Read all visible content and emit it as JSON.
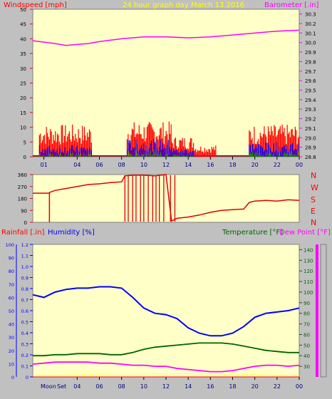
{
  "header": {
    "windspeed_label": "Windspeed [mph]",
    "title": "24 hour graph day   March 13 2016",
    "barometer_label": "Barometer [.in]"
  },
  "colors": {
    "plot_bg": "#ffffc8",
    "gust": "#ff0000",
    "wind_avg": "#0000ff",
    "wind_low": "#00a000",
    "barometer": "#ff00ff",
    "direction": "#e00000",
    "humidity": "#0000ff",
    "temperature": "#006400",
    "dewpoint": "#ff00ff",
    "rainfall": "#ff0000",
    "moon": "#ffff00"
  },
  "time_ticks": [
    "01",
    "04",
    "06",
    "08",
    "10",
    "12",
    "14",
    "16",
    "18",
    "20",
    "22",
    "00"
  ],
  "bottom_ticks": [
    "04",
    "06",
    "08",
    "10",
    "12",
    "14",
    "16",
    "18",
    "20",
    "22",
    "00"
  ],
  "moon_labels": {
    "moon": "Moon",
    "set": "Set"
  },
  "direction_letters": [
    "N",
    "W",
    "S",
    "E",
    "N"
  ],
  "panel3": {
    "rainfall_label": "Rainfall [.in]",
    "humidity_label": "Humidity [%]",
    "temperature_label": "Temperature [°F]",
    "dewpoint_label": "Dew Point [°F]"
  },
  "chart_data": [
    {
      "type": "line",
      "id": "wind_barometer",
      "x_hours": [
        0,
        24
      ],
      "y_left": {
        "label": "Windspeed [mph]",
        "ticks": [
          0,
          5,
          10,
          15,
          20,
          25,
          30,
          35,
          40,
          45,
          50
        ],
        "ylim": [
          0,
          50
        ]
      },
      "y_right": {
        "label": "Barometer [.in]",
        "ticks": [
          28.8,
          28.9,
          29.0,
          29.1,
          29.2,
          29.3,
          29.4,
          29.5,
          29.6,
          29.7,
          29.8,
          29.9,
          30.0,
          30.1,
          30.2,
          30.3
        ],
        "ylim": [
          28.8,
          30.35
        ]
      },
      "series": [
        {
          "name": "Barometer",
          "axis": "right",
          "x": [
            0,
            2,
            3,
            4,
            5,
            6,
            8,
            10,
            12,
            14,
            16,
            18,
            20,
            22,
            24
          ],
          "y": [
            30.02,
            29.99,
            29.97,
            29.98,
            29.99,
            30.01,
            30.04,
            30.06,
            30.06,
            30.05,
            30.06,
            30.08,
            30.1,
            30.12,
            30.13
          ]
        },
        {
          "name": "Wind gust",
          "axis": "left",
          "kind": "bars",
          "segments": [
            [
              0,
              0.6,
              0
            ],
            [
              0.6,
              5.3,
              11
            ],
            [
              5.3,
              8.5,
              0
            ],
            [
              8.5,
              12.5,
              12
            ],
            [
              12.5,
              14.5,
              7
            ],
            [
              14.5,
              16.5,
              4
            ],
            [
              16.5,
              19.5,
              0
            ],
            [
              19.5,
              24,
              11
            ]
          ]
        },
        {
          "name": "Wind average",
          "axis": "left",
          "kind": "bars",
          "segments": [
            [
              0.6,
              5.3,
              4
            ],
            [
              8.5,
              12.5,
              6
            ],
            [
              12.5,
              14.5,
              3
            ],
            [
              19.5,
              24,
              5
            ]
          ]
        }
      ]
    },
    {
      "type": "line",
      "id": "wind_direction",
      "x_hours": [
        0,
        24
      ],
      "y_left": {
        "ticks": [
          0,
          90,
          180,
          270,
          360
        ],
        "ylim": [
          0,
          360
        ]
      },
      "series": [
        {
          "name": "Wind direction",
          "axis": "left",
          "x": [
            0,
            1.5,
            1.5,
            2,
            3,
            4,
            5,
            6,
            7,
            8,
            8.3,
            9,
            10,
            11,
            12,
            12.5,
            13,
            14,
            15,
            16,
            17,
            18,
            19,
            19.5,
            20,
            21,
            22,
            23,
            24
          ],
          "y": [
            220,
            220,
            225,
            240,
            255,
            270,
            285,
            290,
            300,
            305,
            350,
            355,
            355,
            350,
            360,
            10,
            30,
            40,
            55,
            75,
            90,
            95,
            100,
            150,
            160,
            165,
            160,
            170,
            165
          ]
        }
      ]
    },
    {
      "type": "line",
      "id": "humidity_temperature",
      "x_hours": [
        0,
        24
      ],
      "y_rain": {
        "ticks": [
          0,
          0.1,
          0.2,
          0.3,
          0.4,
          0.5,
          0.6,
          0.7,
          0.8,
          0.9,
          1.0,
          1.1,
          1.2
        ],
        "ylim": [
          0,
          1.2
        ]
      },
      "y_humidity": {
        "ticks": [
          0,
          10,
          20,
          30,
          40,
          50,
          60,
          70,
          80,
          90,
          100
        ],
        "ylim": [
          0,
          100
        ]
      },
      "y_temp": {
        "ticks": [
          30,
          40,
          50,
          60,
          70,
          80,
          90,
          100,
          110,
          120,
          130,
          140
        ],
        "ylim": [
          20,
          145
        ]
      },
      "series": [
        {
          "name": "Humidity",
          "axis": "humidity",
          "x": [
            0,
            1,
            2,
            3,
            4,
            5,
            6,
            7,
            8,
            9,
            10,
            11,
            12,
            13,
            14,
            15,
            16,
            17,
            18,
            19,
            20,
            21,
            22,
            23,
            24
          ],
          "y": [
            62,
            60,
            64,
            66,
            67,
            67,
            68,
            68,
            67,
            60,
            52,
            48,
            47,
            44,
            37,
            33,
            31,
            31,
            33,
            38,
            45,
            48,
            49,
            50,
            52
          ]
        },
        {
          "name": "Temperature",
          "axis": "temp",
          "x": [
            0,
            1,
            2,
            3,
            4,
            5,
            6,
            7,
            8,
            9,
            10,
            11,
            12,
            13,
            14,
            15,
            16,
            17,
            18,
            19,
            20,
            21,
            22,
            23,
            24
          ],
          "y": [
            40,
            40,
            41,
            41,
            42,
            42,
            42,
            41,
            41,
            43,
            46,
            48,
            49,
            50,
            51,
            52,
            52,
            52,
            51,
            49,
            47,
            45,
            44,
            43,
            43
          ]
        },
        {
          "name": "Dew Point",
          "axis": "temp",
          "x": [
            0,
            1,
            2,
            3,
            4,
            5,
            6,
            7,
            8,
            9,
            10,
            11,
            12,
            13,
            14,
            15,
            16,
            17,
            18,
            19,
            20,
            21,
            22,
            23,
            24
          ],
          "y": [
            32,
            33,
            34,
            34,
            34,
            34,
            33,
            33,
            32,
            31,
            31,
            30,
            30,
            28,
            27,
            26,
            25,
            25,
            26,
            28,
            30,
            31,
            31,
            30,
            31
          ]
        },
        {
          "name": "Rainfall",
          "axis": "rain",
          "x": [
            0,
            24
          ],
          "y": [
            0,
            0
          ]
        }
      ]
    }
  ]
}
